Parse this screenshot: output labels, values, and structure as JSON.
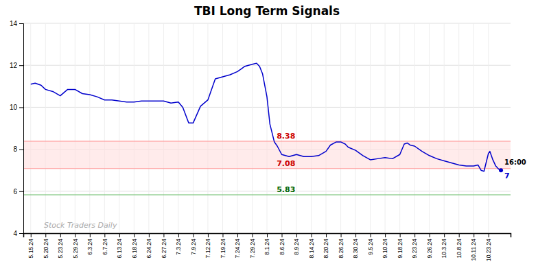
{
  "chart_data": {
    "type": "line",
    "title": "TBI Long Term Signals",
    "color": "#0000cc",
    "grid": true,
    "x": [
      0.0,
      0.3,
      0.7,
      1.0,
      1.5,
      2.0,
      2.5,
      3.0,
      3.5,
      4.0,
      4.5,
      5.0,
      5.5,
      6.0,
      6.5,
      7.0,
      7.5,
      8.0,
      8.5,
      9.0,
      9.5,
      10.0,
      10.3,
      10.7,
      11.0,
      11.5,
      12.0,
      12.5,
      13.0,
      13.5,
      14.0,
      14.3,
      14.5,
      15.0,
      15.3,
      15.5,
      15.7,
      16.0,
      16.2,
      16.5,
      16.7,
      17.0,
      17.5,
      18.0,
      18.5,
      19.0,
      19.5,
      20.0,
      20.3,
      20.7,
      21.0,
      21.3,
      21.5,
      22.0,
      22.5,
      23.0,
      23.5,
      24.0,
      24.5,
      25.0,
      25.3,
      25.5,
      25.7,
      26.0,
      26.5,
      27.0,
      27.5,
      28.0,
      28.5,
      29.0,
      29.5,
      30.0,
      30.3,
      30.5,
      30.7,
      31.0,
      31.1,
      31.3,
      31.5,
      31.7,
      31.85
    ],
    "values": [
      11.1,
      11.15,
      11.05,
      10.85,
      10.75,
      10.55,
      10.85,
      10.85,
      10.65,
      10.6,
      10.5,
      10.35,
      10.35,
      10.3,
      10.25,
      10.25,
      10.3,
      10.3,
      10.3,
      10.3,
      10.2,
      10.25,
      10.0,
      9.25,
      9.25,
      10.05,
      10.35,
      11.35,
      11.45,
      11.55,
      11.7,
      11.85,
      11.95,
      12.05,
      12.1,
      11.95,
      11.6,
      10.5,
      9.2,
      8.35,
      8.15,
      7.75,
      7.65,
      7.75,
      7.65,
      7.65,
      7.7,
      7.9,
      8.2,
      8.35,
      8.35,
      8.25,
      8.1,
      7.95,
      7.7,
      7.5,
      7.55,
      7.6,
      7.55,
      7.75,
      8.25,
      8.3,
      8.2,
      8.15,
      7.9,
      7.7,
      7.55,
      7.45,
      7.35,
      7.25,
      7.2,
      7.2,
      7.25,
      7.0,
      6.95,
      7.8,
      7.9,
      7.5,
      7.2,
      7.05,
      7.0
    ],
    "xlim": [
      -0.5,
      32.5
    ],
    "xticks": [
      {
        "value": 0,
        "label": "5.15.24"
      },
      {
        "value": 1,
        "label": "5.20.24"
      },
      {
        "value": 2,
        "label": "5.23.24"
      },
      {
        "value": 3,
        "label": "5.29.24"
      },
      {
        "value": 4,
        "label": "6.3.24"
      },
      {
        "value": 5,
        "label": "6.7.24"
      },
      {
        "value": 6,
        "label": "6.13.24"
      },
      {
        "value": 7,
        "label": "6.18.24"
      },
      {
        "value": 8,
        "label": "6.24.24"
      },
      {
        "value": 9,
        "label": "6.27.24"
      },
      {
        "value": 10,
        "label": "7.3.24"
      },
      {
        "value": 11,
        "label": "7.9.24"
      },
      {
        "value": 12,
        "label": "7.12.24"
      },
      {
        "value": 13,
        "label": "7.19.24"
      },
      {
        "value": 14,
        "label": "7.24.24"
      },
      {
        "value": 15,
        "label": "7.29.24"
      },
      {
        "value": 16,
        "label": "8.1.24"
      },
      {
        "value": 17,
        "label": "8.6.24"
      },
      {
        "value": 18,
        "label": "8.9.24"
      },
      {
        "value": 19,
        "label": "8.14.24"
      },
      {
        "value": 20,
        "label": "8.20.24"
      },
      {
        "value": 21,
        "label": "8.26.24"
      },
      {
        "value": 22,
        "label": "8.30.24"
      },
      {
        "value": 23,
        "label": "9.5.24"
      },
      {
        "value": 24,
        "label": "9.10.24"
      },
      {
        "value": 25,
        "label": "9.18.24"
      },
      {
        "value": 26,
        "label": "9.23.24"
      },
      {
        "value": 27,
        "label": "9.26.24"
      },
      {
        "value": 28,
        "label": "10.3.24"
      },
      {
        "value": 29,
        "label": "10.8.24"
      },
      {
        "value": 30,
        "label": "10.11.24"
      },
      {
        "value": 31,
        "label": "10.23.24"
      }
    ],
    "ylim": [
      4,
      14
    ],
    "yticks": [
      4,
      6,
      8,
      10,
      12,
      14
    ],
    "band": {
      "from": 7.08,
      "to": 8.38,
      "color": "#ffdddd"
    },
    "reference_lines": [
      {
        "value": 8.38,
        "label": "8.38",
        "color": "#ff9999",
        "label_color": "#cc0000"
      },
      {
        "value": 7.08,
        "label": "7.08",
        "color": "#ff9999",
        "label_color": "#cc0000"
      },
      {
        "value": 5.83,
        "label": "5.83",
        "color": "#66bb66",
        "label_color": "#006600"
      }
    ],
    "last_point_labels": [
      {
        "text": "16:00",
        "color": "#000000"
      },
      {
        "text": "7",
        "color": "#0000cc"
      }
    ],
    "watermark": {
      "text": "Stock Traders Daily",
      "color": "#aaaaaa"
    }
  }
}
